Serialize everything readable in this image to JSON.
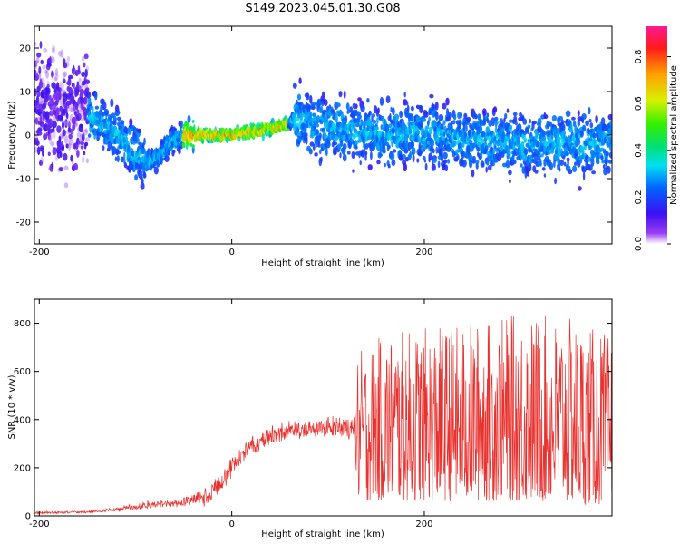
{
  "chart_data": [
    {
      "type": "heatmap",
      "title": "S149.2023.045.01.30.G08",
      "xlabel": "Height of straight line (km)",
      "ylabel": "Frequency (Hz)",
      "xlim": [
        -205,
        395
      ],
      "ylim": [
        -25,
        25
      ],
      "xticks": [
        -200,
        0,
        200
      ],
      "yticks": [
        20,
        10,
        0,
        -10,
        -20
      ],
      "colorbar": {
        "label": "Normalized spectral amplitude",
        "range": [
          0,
          0.93
        ],
        "ticks": [
          "0.0",
          "0.2",
          "0.4",
          "0.6",
          "0.8"
        ]
      },
      "ridge": {
        "x": [
          -205,
          -180,
          -150,
          -130,
          -110,
          -95,
          -85,
          -75,
          -70,
          -60,
          -50,
          -30,
          0,
          30,
          50,
          60,
          65,
          80,
          100,
          120,
          150,
          180,
          210,
          240,
          270,
          300,
          330,
          360,
          395
        ],
        "y": [
          8,
          6,
          4,
          2,
          -2,
          -5,
          -6,
          -5,
          -3,
          -1,
          0,
          0,
          0,
          1,
          2,
          3,
          4,
          3,
          2,
          1,
          0,
          0,
          0,
          -1,
          -1,
          -2,
          -2,
          -2,
          -2
        ],
        "peak_amplitude_range_km": [
          -50,
          60
        ]
      }
    },
    {
      "type": "line",
      "xlabel": "Height of straight line (km)",
      "ylabel": "SNR (10 * v/v)",
      "xlim": [
        -205,
        395
      ],
      "ylim": [
        0,
        900
      ],
      "xticks": [
        -200,
        0,
        200
      ],
      "yticks": [
        0,
        200,
        400,
        600,
        800
      ],
      "color": "#e8322f",
      "envelope": {
        "x": [
          -205,
          -150,
          -120,
          -90,
          -60,
          -40,
          -25,
          -15,
          -5,
          5,
          20,
          40,
          60,
          80,
          100,
          120,
          128,
          130,
          160,
          200,
          250,
          300,
          350,
          395
        ],
        "low": [
          5,
          8,
          12,
          20,
          25,
          30,
          20,
          40,
          100,
          170,
          230,
          270,
          290,
          300,
          310,
          300,
          290,
          60,
          60,
          60,
          60,
          60,
          50,
          40
        ],
        "high": [
          20,
          25,
          40,
          70,
          80,
          110,
          150,
          200,
          250,
          300,
          360,
          390,
          410,
          420,
          430,
          440,
          450,
          680,
          760,
          780,
          800,
          840,
          820,
          750
        ]
      }
    }
  ]
}
